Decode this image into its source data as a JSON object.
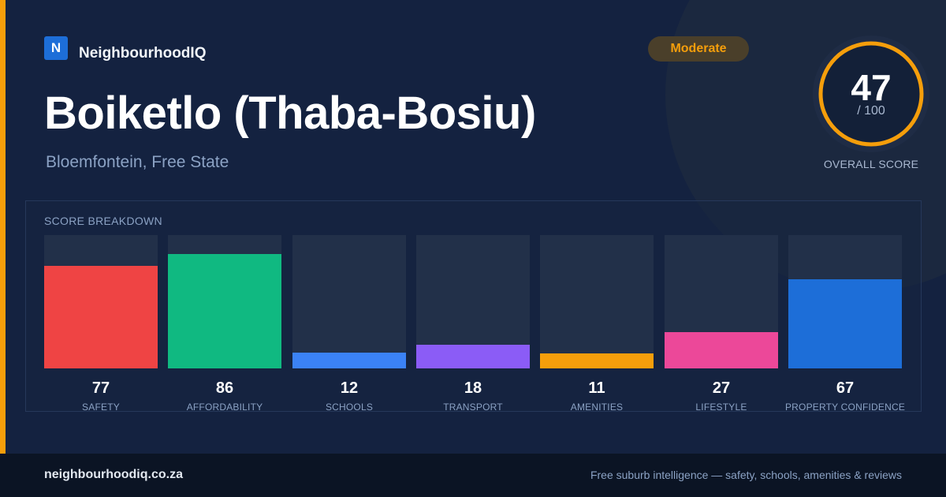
{
  "brand": {
    "logo_letter": "N",
    "name": "NeighbourhoodIQ"
  },
  "suburb": {
    "name": "Boiketlo (Thaba-Bosiu)",
    "location": "Bloemfontein, Free State"
  },
  "rating_badge": "Moderate",
  "overall": {
    "score": "47",
    "max": "/ 100",
    "caption": "OVERALL SCORE",
    "value": 47,
    "ring_color": "#f59e0b"
  },
  "breakdown": {
    "title": "SCORE BREAKDOWN",
    "items": [
      {
        "label": "SAFETY",
        "value": 77,
        "color": "#ef4444"
      },
      {
        "label": "AFFORDABILITY",
        "value": 86,
        "color": "#10b981"
      },
      {
        "label": "SCHOOLS",
        "value": 12,
        "color": "#3b82f6"
      },
      {
        "label": "TRANSPORT",
        "value": 18,
        "color": "#8b5cf6"
      },
      {
        "label": "AMENITIES",
        "value": 11,
        "color": "#f59e0b"
      },
      {
        "label": "LIFESTYLE",
        "value": 27,
        "color": "#ec4899"
      },
      {
        "label": "PROPERTY CONFIDENCE",
        "value": 67,
        "color": "#1d6ed8"
      }
    ]
  },
  "footer": {
    "url": "neighbourhoodiq.co.za",
    "tagline": "Free suburb intelligence — safety, schools, amenities & reviews"
  }
}
